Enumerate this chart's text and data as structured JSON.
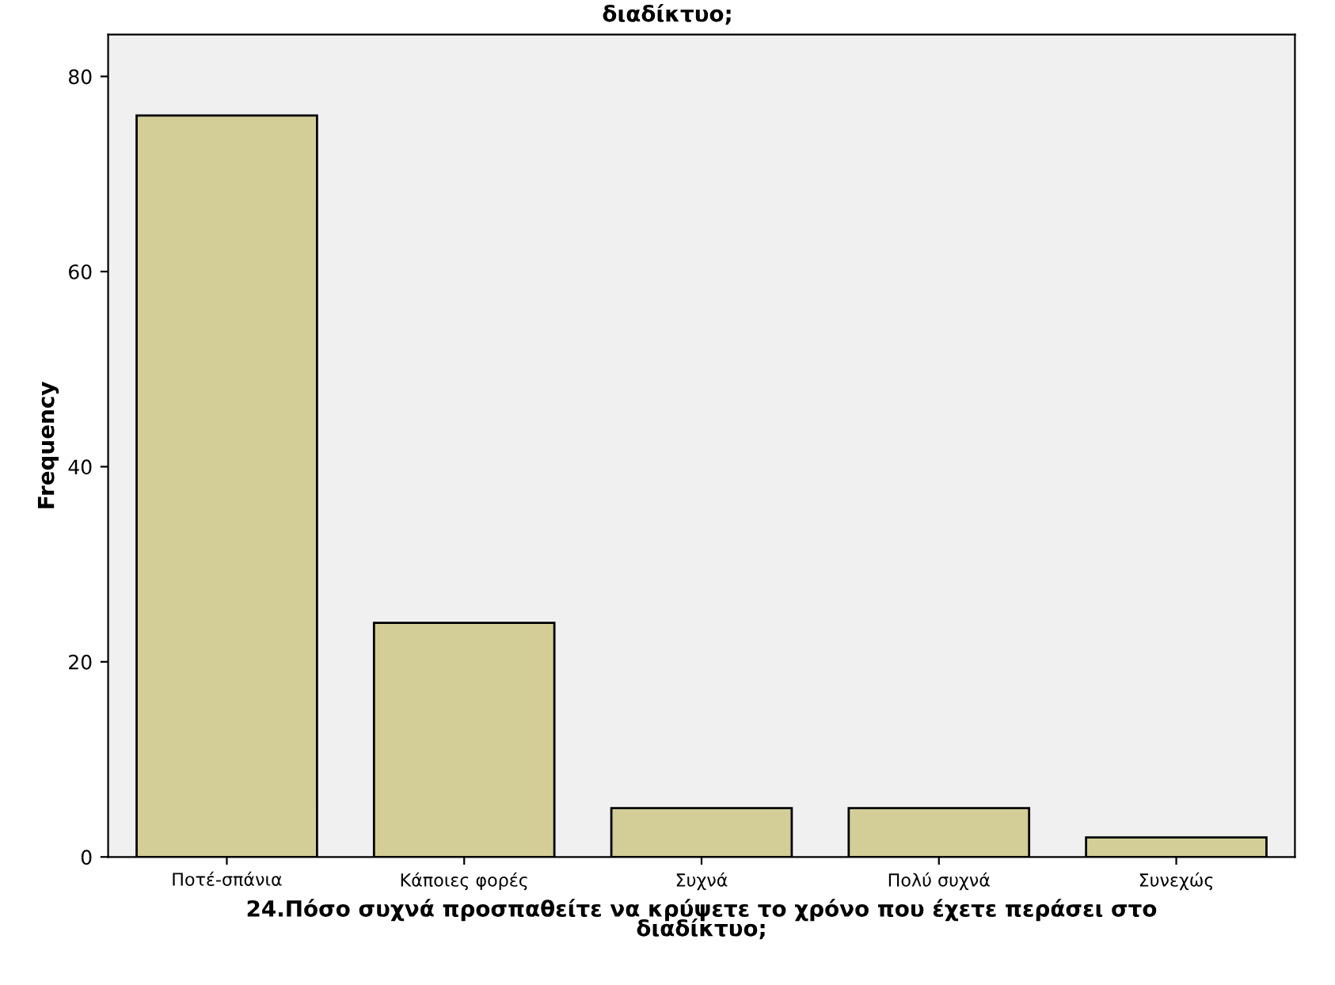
{
  "chart_data": {
    "type": "bar",
    "title": "διαδίκτυο;",
    "xlabel": "24.Πόσο συχνά προσπαθείτε να κρύψετε το χρόνο που έχετε περάσει στο\nδιαδίκτυο;",
    "ylabel": "Frequency",
    "categories": [
      "Ποτέ-σπάνια",
      "Κάποιες φορές",
      "Συχνά",
      "Πολύ συχνά",
      "Συνεχώς"
    ],
    "values": [
      76,
      24,
      5,
      5,
      2
    ],
    "color": "#d3ce97",
    "ylim": [
      0,
      84.3
    ],
    "yticks": [
      0,
      20,
      40,
      60,
      80
    ],
    "grid": false,
    "legend": false
  }
}
